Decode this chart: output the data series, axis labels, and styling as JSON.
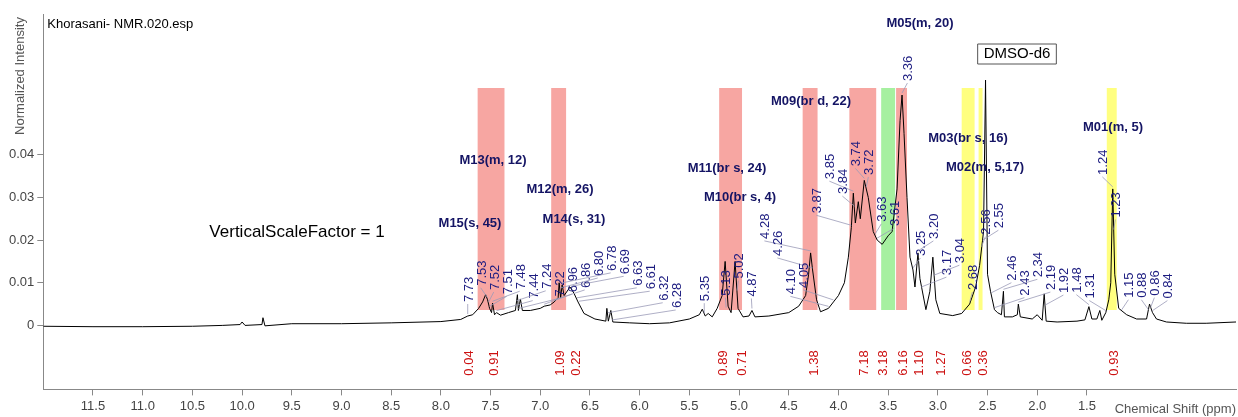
{
  "chart_data": {
    "type": "line",
    "title": "Khorasani- NMR.020.esp",
    "xlabel": "Chemical Shift (ppm)",
    "ylabel": "Normalized Intensity",
    "xlim": [
      12.0,
      0.0
    ],
    "ylim": [
      -0.015,
      0.073
    ],
    "xticks": [
      11.5,
      {
        "value": 11,
        "label": "11.0"
      },
      10.5,
      {
        "value": 10,
        "label": "10.0"
      },
      9.5,
      {
        "value": 9,
        "label": "9.0"
      },
      8.5,
      {
        "value": 8,
        "label": "8.0"
      },
      7.5,
      {
        "value": 7,
        "label": "7.0"
      },
      6.5,
      {
        "value": 6,
        "label": "6.0"
      },
      5.5,
      {
        "value": 5,
        "label": "5.0"
      },
      4.5,
      {
        "value": 4,
        "label": "4.0"
      },
      3.5,
      {
        "value": 3,
        "label": "3.0"
      },
      2.5,
      {
        "value": 2,
        "label": "2.0"
      },
      1.5
    ],
    "yticks": [
      0,
      0.01,
      0.02,
      0.03,
      0.04
    ],
    "grid": false,
    "color": "#000000",
    "x": [
      12.0,
      11.5,
      11.0,
      10.5,
      10.2,
      10.02,
      10.0,
      9.97,
      9.8,
      9.79,
      9.77,
      9.5,
      9.0,
      8.5,
      8.0,
      7.8,
      7.73,
      7.68,
      7.62,
      7.58,
      7.55,
      7.53,
      7.51,
      7.49,
      7.48,
      7.46,
      7.44,
      7.4,
      7.32,
      7.25,
      7.23,
      7.22,
      7.2,
      7.18,
      7.1,
      7.0,
      6.96,
      6.9,
      6.86,
      6.82,
      6.81,
      6.795,
      6.78,
      6.76,
      6.7,
      6.66,
      6.62,
      6.56,
      6.45,
      6.34,
      6.33,
      6.315,
      6.29,
      6.27,
      6.1,
      5.9,
      5.7,
      5.5,
      5.4,
      5.37,
      5.34,
      5.31,
      5.27,
      5.22,
      5.17,
      5.14,
      5.11,
      5.08,
      5.04,
      5.01,
      4.96,
      4.9,
      4.87,
      4.84,
      4.7,
      4.5,
      4.4,
      4.33,
      4.3,
      4.28,
      4.26,
      4.22,
      4.18,
      4.1,
      4.05,
      4.0,
      3.94,
      3.9,
      3.87,
      3.85,
      3.83,
      3.8,
      3.78,
      3.74,
      3.7,
      3.65,
      3.61,
      3.56,
      3.5,
      3.46,
      3.41,
      3.38,
      3.36,
      3.34,
      3.31,
      3.28,
      3.25,
      3.23,
      3.2,
      3.18,
      3.12,
      3.08,
      3.05,
      3.02,
      2.98,
      2.85,
      2.76,
      2.68,
      2.62,
      2.58,
      2.54,
      2.52,
      2.5,
      2.47,
      2.43,
      2.4,
      2.36,
      2.34,
      2.33,
      2.25,
      2.2,
      2.19,
      2.17,
      2.05,
      2.0,
      1.95,
      1.93,
      1.91,
      1.8,
      1.6,
      1.52,
      1.48,
      1.45,
      1.4,
      1.37,
      1.35,
      1.31,
      1.28,
      1.26,
      1.24,
      1.22,
      1.18,
      1.1,
      1.0,
      0.9,
      0.87,
      0.84,
      0.8,
      0.7,
      0.5,
      0.3,
      0.0
    ],
    "values": [
      -0.0002,
      -0.0003,
      -0.0003,
      -0.0002,
      0.0,
      0.0002,
      0.0008,
      0.0,
      0.0002,
      0.0018,
      -0.0001,
      0.0004,
      0.0004,
      0.0006,
      0.0009,
      0.0014,
      0.0022,
      0.0025,
      0.004,
      0.0055,
      0.0072,
      0.006,
      0.004,
      0.003,
      0.0052,
      0.0025,
      0.003,
      0.0024,
      0.003,
      0.0035,
      0.0072,
      0.0035,
      0.0062,
      0.0035,
      0.0035,
      0.004,
      0.0045,
      0.0048,
      0.0055,
      0.0065,
      0.01,
      0.0065,
      0.0095,
      0.007,
      0.009,
      0.0075,
      0.0055,
      0.0028,
      0.0015,
      0.001,
      0.004,
      0.001,
      0.0035,
      0.0008,
      0.0006,
      0.0004,
      0.0006,
      0.0015,
      0.0025,
      0.0038,
      0.0022,
      0.0028,
      0.002,
      0.004,
      0.007,
      0.015,
      0.0045,
      0.003,
      0.015,
      0.004,
      0.002,
      0.0022,
      0.0035,
      0.002,
      0.0022,
      0.003,
      0.0045,
      0.007,
      0.012,
      0.017,
      0.013,
      0.006,
      0.0032,
      0.004,
      0.0055,
      0.007,
      0.01,
      0.016,
      0.023,
      0.031,
      0.024,
      0.029,
      0.025,
      0.034,
      0.03,
      0.022,
      0.02,
      0.019,
      0.021,
      0.022,
      0.032,
      0.048,
      0.054,
      0.045,
      0.03,
      0.016,
      0.013,
      0.009,
      0.017,
      0.011,
      0.0037,
      0.008,
      0.016,
      0.006,
      0.0028,
      0.0023,
      0.0028,
      0.005,
      0.009,
      0.014,
      0.022,
      0.0575,
      0.012,
      0.008,
      0.0037,
      0.003,
      0.0025,
      0.008,
      0.002,
      0.002,
      0.0025,
      0.005,
      0.002,
      0.0015,
      0.0025,
      0.0012,
      0.0074,
      0.001,
      0.0008,
      0.001,
      0.0013,
      0.0044,
      0.0015,
      0.0015,
      0.0035,
      0.0012,
      0.003,
      0.006,
      0.01,
      0.032,
      0.012,
      0.004,
      0.0025,
      0.0015,
      0.0015,
      0.005,
      0.003,
      0.0015,
      0.0008,
      0.0005,
      0.0005,
      0.0008
    ],
    "bands": [
      {
        "axis": "x",
        "from": 7.63,
        "to": 7.36,
        "color": "#f7a6a2"
      },
      {
        "axis": "x",
        "from": 6.89,
        "to": 6.74,
        "color": "#f7a6a2"
      },
      {
        "axis": "x",
        "from": 5.2,
        "to": 4.97,
        "color": "#f7a6a2"
      },
      {
        "axis": "x",
        "from": 4.36,
        "to": 4.21,
        "color": "#f7a6a2"
      },
      {
        "axis": "x",
        "from": 3.89,
        "to": 3.62,
        "color": "#f7a6a2"
      },
      {
        "axis": "x",
        "from": 3.57,
        "to": 3.43,
        "color": "#a6f0a0"
      },
      {
        "axis": "x",
        "from": 3.42,
        "to": 3.31,
        "color": "#f7a6a2"
      },
      {
        "axis": "x",
        "from": 2.76,
        "to": 2.63,
        "color": "#ffff80"
      },
      {
        "axis": "x",
        "from": 2.59,
        "to": 2.55,
        "color": "#ffff80"
      },
      {
        "axis": "x",
        "from": 1.3,
        "to": 1.2,
        "color": "#ffff80"
      }
    ],
    "annotations": [
      "VerticalScaleFactor = 1",
      "DMSO-d6",
      "M15(s, 45)",
      "M13(m, 12)",
      "M12(m, 26)",
      "M14(s, 31)",
      "M11(br s, 24)",
      "M10(br s, 4)",
      "M09(br d, 22)",
      "M05(m, 20)",
      "M03(br s, 16)",
      "M02(m, 5,17)",
      "M01(m, 5)",
      "0.04",
      "0.91",
      "1.09",
      "0.22",
      "0.89",
      "0.71",
      "1.38",
      "7.18",
      "3.18",
      "6.16",
      "1.10",
      "1.27",
      "0.66",
      "0.36",
      "0.93",
      {
        "text": "7.73",
        "x": 7.73,
        "y": 0.0022
      },
      {
        "text": "7.53",
        "x": 7.53,
        "y": 0.006
      },
      {
        "text": "7.52",
        "x": 7.52,
        "y": 0.005
      },
      {
        "text": "7.51",
        "x": 7.51,
        "y": 0.004
      },
      {
        "text": "7.48",
        "x": 7.48,
        "y": 0.0052
      },
      {
        "text": "7.44",
        "x": 7.44,
        "y": 0.003
      },
      {
        "text": "7.24",
        "x": 7.24,
        "y": 0.0053
      },
      {
        "text": "7.22",
        "x": 7.22,
        "y": 0.0035
      },
      {
        "text": "6.96",
        "x": 6.96,
        "y": 0.0045
      },
      {
        "text": "6.86",
        "x": 6.86,
        "y": 0.0055
      },
      {
        "text": "6.80",
        "x": 6.8,
        "y": 0.0083
      },
      {
        "text": "6.78",
        "x": 6.78,
        "y": 0.0095
      },
      {
        "text": "6.69",
        "x": 6.69,
        "y": 0.0087
      },
      {
        "text": "6.63",
        "x": 6.63,
        "y": 0.006
      },
      {
        "text": "6.61",
        "x": 6.61,
        "y": 0.0052
      },
      {
        "text": "6.32",
        "x": 6.32,
        "y": 0.0025
      },
      {
        "text": "6.28",
        "x": 6.28,
        "y": 0.0008
      },
      {
        "text": "5.35",
        "x": 5.35,
        "y": 0.0024
      },
      {
        "text": "5.13",
        "x": 5.13,
        "y": 0.0037
      },
      {
        "text": "5.02",
        "x": 5.02,
        "y": 0.0077
      },
      {
        "text": "4.87",
        "x": 4.87,
        "y": 0.0035
      },
      {
        "text": "4.28",
        "x": 4.28,
        "y": 0.017
      },
      {
        "text": "4.26",
        "x": 4.26,
        "y": 0.013
      },
      {
        "text": "4.10",
        "x": 4.1,
        "y": 0.004
      },
      {
        "text": "4.05",
        "x": 4.05,
        "y": 0.0055
      },
      {
        "text": "3.87",
        "x": 3.87,
        "y": 0.023
      },
      {
        "text": "3.85",
        "x": 3.85,
        "y": 0.031
      },
      {
        "text": "3.84",
        "x": 3.84,
        "y": 0.0275
      },
      {
        "text": "3.74",
        "x": 3.74,
        "y": 0.034
      },
      {
        "text": "3.72",
        "x": 3.72,
        "y": 0.032
      },
      {
        "text": "3.63",
        "x": 3.63,
        "y": 0.021
      },
      {
        "text": "3.61",
        "x": 3.61,
        "y": 0.02
      },
      {
        "text": "3.36",
        "x": 3.36,
        "y": 0.054
      },
      {
        "text": "3.25",
        "x": 3.25,
        "y": 0.013
      },
      {
        "text": "3.20",
        "x": 3.2,
        "y": 0.017
      },
      {
        "text": "3.17",
        "x": 3.17,
        "y": 0.0085
      },
      {
        "text": "3.04",
        "x": 3.04,
        "y": 0.0113
      },
      {
        "text": "2.68",
        "x": 2.68,
        "y": 0.005
      },
      {
        "text": "2.56",
        "x": 2.56,
        "y": 0.018
      },
      {
        "text": "2.55",
        "x": 2.55,
        "y": 0.0195
      },
      {
        "text": "2.46",
        "x": 2.46,
        "y": 0.0072
      },
      {
        "text": "2.43",
        "x": 2.43,
        "y": 0.0037
      },
      {
        "text": "2.34",
        "x": 2.34,
        "y": 0.008
      },
      {
        "text": "2.19",
        "x": 2.19,
        "y": 0.005
      },
      {
        "text": "1.92",
        "x": 1.92,
        "y": 0.0043
      },
      {
        "text": "1.48",
        "x": 1.48,
        "y": 0.0044
      },
      {
        "text": "1.31",
        "x": 1.31,
        "y": 0.003
      },
      {
        "text": "1.24",
        "x": 1.24,
        "y": 0.032
      },
      {
        "text": "1.23",
        "x": 1.23,
        "y": 0.022
      },
      {
        "text": "1.15",
        "x": 1.15,
        "y": 0.0032
      },
      {
        "text": "0.88",
        "x": 0.88,
        "y": 0.0032
      },
      {
        "text": "0.86",
        "x": 0.86,
        "y": 0.0037
      },
      {
        "text": "0.84",
        "x": 0.84,
        "y": 0.003
      }
    ]
  }
}
